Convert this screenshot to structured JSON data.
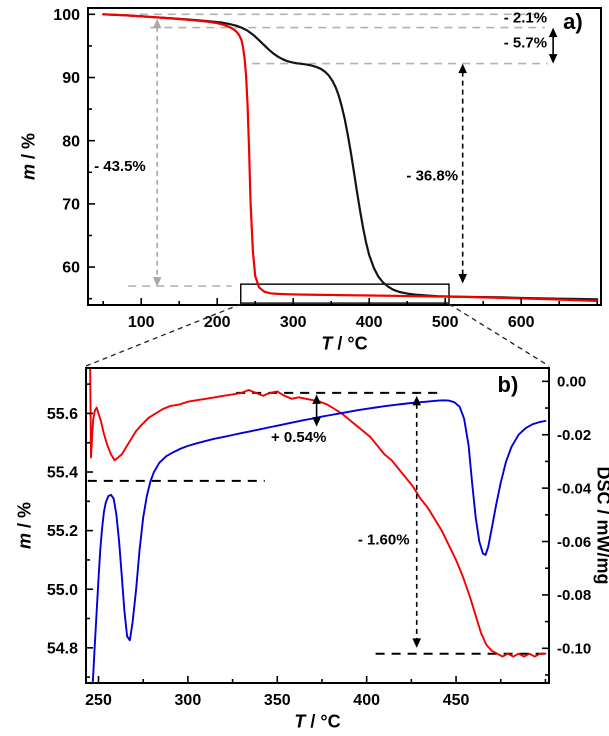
{
  "figure": {
    "description": "TGA / DSC thermal analysis figure with two panels"
  },
  "chart_data": [
    {
      "id": "a",
      "type": "line",
      "panel_label": {
        "text": "a)",
        "x": 668,
        "y": 98.9
      },
      "xlabel": {
        "italic": "T",
        "rest": " / °C"
      },
      "ylabel": {
        "italic": "m",
        "rest": " / %"
      },
      "xlim": [
        30,
        705
      ],
      "ylim": [
        54,
        101
      ],
      "xticks": [
        100,
        200,
        300,
        400,
        500,
        600
      ],
      "xtick_labels": [
        "100",
        "200",
        "300",
        "400",
        "500",
        "600"
      ],
      "yticks": [
        60,
        70,
        80,
        90,
        100
      ],
      "ytick_labels": [
        "60",
        "70",
        "80",
        "90",
        "100"
      ],
      "series": [
        {
          "name": "tga-black",
          "color": "#141414",
          "width": 2.2,
          "axis": "left",
          "x": [
            50,
            80,
            110,
            140,
            170,
            190,
            205,
            215,
            225,
            232,
            240,
            248,
            255,
            262,
            268,
            274,
            280,
            286,
            292,
            298,
            305,
            312,
            318,
            324,
            330,
            336,
            342,
            347,
            352,
            356,
            360,
            364,
            368,
            372,
            376,
            380,
            384,
            388,
            392,
            396,
            400,
            406,
            412,
            418,
            425,
            432,
            440,
            450,
            460,
            475,
            490,
            505,
            525,
            550,
            575,
            600,
            625,
            650,
            675,
            700
          ],
          "y": [
            100,
            99.85,
            99.6,
            99.35,
            99.1,
            98.9,
            98.7,
            98.5,
            98.2,
            97.9,
            97.4,
            96.7,
            95.9,
            95.1,
            94.4,
            93.8,
            93.3,
            92.9,
            92.6,
            92.4,
            92.25,
            92.15,
            92.05,
            91.9,
            91.7,
            91.4,
            90.9,
            90.3,
            89.4,
            88.4,
            87.1,
            85.4,
            83.3,
            80.8,
            78,
            75,
            71.9,
            68.9,
            66.2,
            63.8,
            61.9,
            59.9,
            58.5,
            57.6,
            56.9,
            56.4,
            56.05,
            55.8,
            55.65,
            55.5,
            55.4,
            55.35,
            55.3,
            55.25,
            55.2,
            55.1,
            55.05,
            55,
            54.95,
            54.9
          ]
        },
        {
          "name": "tga-red",
          "color": "#f20000",
          "width": 2.2,
          "axis": "left",
          "x": [
            50,
            80,
            110,
            140,
            170,
            190,
            200,
            208,
            214,
            220,
            225,
            229,
            232,
            234,
            236,
            238,
            240,
            242,
            244,
            247,
            250,
            255,
            262,
            270,
            280,
            295,
            315,
            340,
            370,
            400,
            430,
            460,
            490,
            520,
            550,
            580,
            610,
            640,
            670,
            700
          ],
          "y": [
            100,
            99.85,
            99.6,
            99.35,
            99.05,
            98.8,
            98.6,
            98.35,
            98.1,
            97.75,
            97.3,
            96.7,
            95.9,
            94.8,
            93,
            90.2,
            85.5,
            78.5,
            70,
            62.5,
            58.6,
            56.8,
            56.1,
            55.85,
            55.75,
            55.7,
            55.65,
            55.6,
            55.55,
            55.5,
            55.45,
            55.4,
            55.35,
            55.3,
            55.2,
            55.1,
            55,
            54.9,
            54.78,
            54.65
          ]
        }
      ],
      "ref_lines": [
        {
          "y": 100,
          "x1": 98,
          "x2": 631,
          "color": "#b3b3b3",
          "dash": "8,6",
          "width": 1.6
        },
        {
          "y": 97.9,
          "x1": 112,
          "x2": 631,
          "color": "#b3b3b3",
          "dash": "8,6",
          "width": 1.6
        },
        {
          "y": 92.2,
          "x1": 246,
          "x2": 635,
          "color": "#b3b3b3",
          "dash": "8,6",
          "width": 1.6
        },
        {
          "y": 57.0,
          "x1": 83,
          "x2": 219,
          "color": "#b3b3b3",
          "dash": "8,6",
          "width": 1.6
        }
      ],
      "arrows": [
        {
          "x": 642,
          "y1": 97.9,
          "y2": 92.2,
          "color": "#000000",
          "dash": false
        },
        {
          "x": 523,
          "y1": 92.2,
          "y2": 57.4,
          "color": "#000000",
          "dash": true
        },
        {
          "x": 121,
          "y1": 99.3,
          "y2": 56.9,
          "color": "#a8a8a8",
          "dash": true
        }
      ],
      "labels": [
        {
          "text": "- 2.1%",
          "x": 577,
          "y": 99.5,
          "color": "#000000",
          "anchor": "start",
          "size": 15
        },
        {
          "text": "- 5.7%",
          "x": 577,
          "y": 95.6,
          "color": "#000000",
          "anchor": "start",
          "size": 15
        },
        {
          "text": "- 36.8%",
          "x": 517,
          "y": 74.5,
          "color": "#000000",
          "anchor": "end",
          "size": 15
        },
        {
          "text": "- 43.5%",
          "x": 38,
          "y": 76.0,
          "color": "#a8a8a8",
          "anchor": "start",
          "size": 15
        }
      ],
      "zoom_box": {
        "x1": 231,
        "x2": 505,
        "y1": 54.3,
        "y2": 57.3
      }
    },
    {
      "id": "b",
      "type": "line",
      "panel_label": {
        "text": "b)",
        "x": 479,
        "y": 55.7
      },
      "xlabel": {
        "italic": "T",
        "rest": " / °C"
      },
      "ylabel": {
        "italic": "m",
        "rest": " / %"
      },
      "y2label": {
        "italic": "",
        "rest": "DSC / mW/mg"
      },
      "xlim": [
        243,
        502
      ],
      "ylim": [
        54.68,
        55.755
      ],
      "y2lim": [
        -0.113,
        0.005
      ],
      "xticks": [
        250,
        300,
        350,
        400,
        450
      ],
      "xtick_labels": [
        "250",
        "300",
        "350",
        "400",
        "450"
      ],
      "yticks": [
        54.8,
        55.0,
        55.2,
        55.4,
        55.6
      ],
      "ytick_labels": [
        "54.8",
        "55.0",
        "55.2",
        "55.4",
        "55.6"
      ],
      "y2ticks": [
        0,
        -0.02,
        -0.04,
        -0.06,
        -0.08,
        -0.1
      ],
      "y2tick_labels": [
        "0.00",
        "-0.02",
        "-0.04",
        "-0.06",
        "-0.08",
        "-0.10"
      ],
      "series": [
        {
          "name": "mass-red",
          "color": "#f20000",
          "width": 1.9,
          "axis": "left",
          "x": [
            245.3,
            245.8,
            246.4,
            247,
            248,
            249,
            250,
            251.5,
            253,
            255,
            257,
            259,
            261,
            263,
            265,
            268,
            271,
            274,
            278,
            282,
            286,
            290,
            295,
            300,
            305,
            310,
            315,
            320,
            325,
            330,
            334,
            338,
            342,
            346,
            350,
            354,
            358,
            362,
            366,
            370,
            374,
            378,
            382,
            386,
            390,
            394,
            398,
            402,
            406,
            410,
            414,
            418,
            422,
            426,
            430,
            434,
            438,
            442,
            446,
            450,
            454,
            458,
            461,
            464,
            467,
            470,
            473,
            476,
            479,
            482,
            485,
            488,
            491,
            494,
            497,
            500
          ],
          "y": [
            55.78,
            55.45,
            55.52,
            55.58,
            55.61,
            55.62,
            55.6,
            55.57,
            55.53,
            55.49,
            55.46,
            55.44,
            55.45,
            55.46,
            55.48,
            55.51,
            55.54,
            55.56,
            55.585,
            55.6,
            55.615,
            55.625,
            55.63,
            55.64,
            55.645,
            55.65,
            55.655,
            55.66,
            55.665,
            55.67,
            55.68,
            55.67,
            55.66,
            55.67,
            55.675,
            55.66,
            55.65,
            55.655,
            55.65,
            55.645,
            55.64,
            55.63,
            55.615,
            55.6,
            55.58,
            55.56,
            55.54,
            55.52,
            55.49,
            55.46,
            55.44,
            55.41,
            55.38,
            55.35,
            55.31,
            55.28,
            55.24,
            55.2,
            55.15,
            55.1,
            55.04,
            54.97,
            54.91,
            54.85,
            54.81,
            54.79,
            54.78,
            54.77,
            54.78,
            54.77,
            54.78,
            54.77,
            54.78,
            54.77,
            54.78,
            54.78
          ]
        },
        {
          "name": "dsc-blue",
          "color": "#0000d8",
          "width": 1.9,
          "axis": "right",
          "x": [
            246,
            246.6,
            247.2,
            248,
            249,
            250,
            251,
            252,
            253,
            254,
            255.5,
            257,
            258.5,
            260,
            261.5,
            263,
            264.5,
            266,
            267.5,
            269,
            271,
            273,
            275,
            277,
            279,
            281,
            284,
            288,
            292,
            296,
            300,
            305,
            310,
            315,
            320,
            325,
            330,
            335,
            340,
            345,
            350,
            355,
            360,
            365,
            370,
            375,
            380,
            385,
            390,
            395,
            400,
            405,
            410,
            415,
            420,
            425,
            430,
            435,
            440,
            443,
            446,
            449,
            452,
            454.5,
            457,
            459,
            461,
            463,
            465,
            466.5,
            468,
            470,
            472.5,
            475,
            478,
            481,
            485,
            489,
            493,
            497,
            500
          ],
          "y": [
            -0.12,
            -0.115,
            -0.108,
            -0.098,
            -0.086,
            -0.074,
            -0.063,
            -0.055,
            -0.049,
            -0.0455,
            -0.043,
            -0.0425,
            -0.044,
            -0.05,
            -0.06,
            -0.073,
            -0.086,
            -0.0955,
            -0.097,
            -0.0905,
            -0.078,
            -0.063,
            -0.051,
            -0.043,
            -0.0375,
            -0.034,
            -0.0305,
            -0.028,
            -0.0265,
            -0.0252,
            -0.0242,
            -0.0232,
            -0.0223,
            -0.0215,
            -0.0208,
            -0.0201,
            -0.0194,
            -0.0187,
            -0.018,
            -0.0173,
            -0.0166,
            -0.0159,
            -0.0152,
            -0.0145,
            -0.0139,
            -0.0132,
            -0.0126,
            -0.012,
            -0.0114,
            -0.0108,
            -0.0103,
            -0.0098,
            -0.0093,
            -0.0089,
            -0.0085,
            -0.0081,
            -0.0078,
            -0.0075,
            -0.0072,
            -0.0071,
            -0.0072,
            -0.0078,
            -0.0095,
            -0.014,
            -0.024,
            -0.038,
            -0.051,
            -0.06,
            -0.0645,
            -0.065,
            -0.062,
            -0.055,
            -0.046,
            -0.038,
            -0.03,
            -0.0245,
            -0.02,
            -0.0175,
            -0.016,
            -0.0152,
            -0.0148
          ]
        }
      ],
      "ref_lines": [
        {
          "y": 55.67,
          "x1": 327,
          "x2": 443,
          "color": "#000000",
          "dash": "9,7",
          "width": 2
        },
        {
          "y": 55.37,
          "x1": 244,
          "x2": 343,
          "color": "#000000",
          "dash": "9,7",
          "width": 2
        },
        {
          "y": 54.78,
          "x1": 405,
          "x2": 500,
          "color": "#000000",
          "dash": "9,7",
          "width": 2
        }
      ],
      "arrows": [
        {
          "x": 372,
          "y1": 55.665,
          "y2": 55.555,
          "color": "#000000",
          "dash": false
        },
        {
          "x": 428,
          "y1": 55.66,
          "y2": 54.8,
          "color": "#000000",
          "dash": true
        }
      ],
      "labels": [
        {
          "text": "+ 0.54%",
          "x": 362,
          "y": 55.52,
          "color": "#000000",
          "anchor": "middle",
          "size": 15
        },
        {
          "text": "- 1.60%",
          "x": 424,
          "y": 55.17,
          "color": "#000000",
          "anchor": "end",
          "size": 15
        }
      ]
    }
  ]
}
